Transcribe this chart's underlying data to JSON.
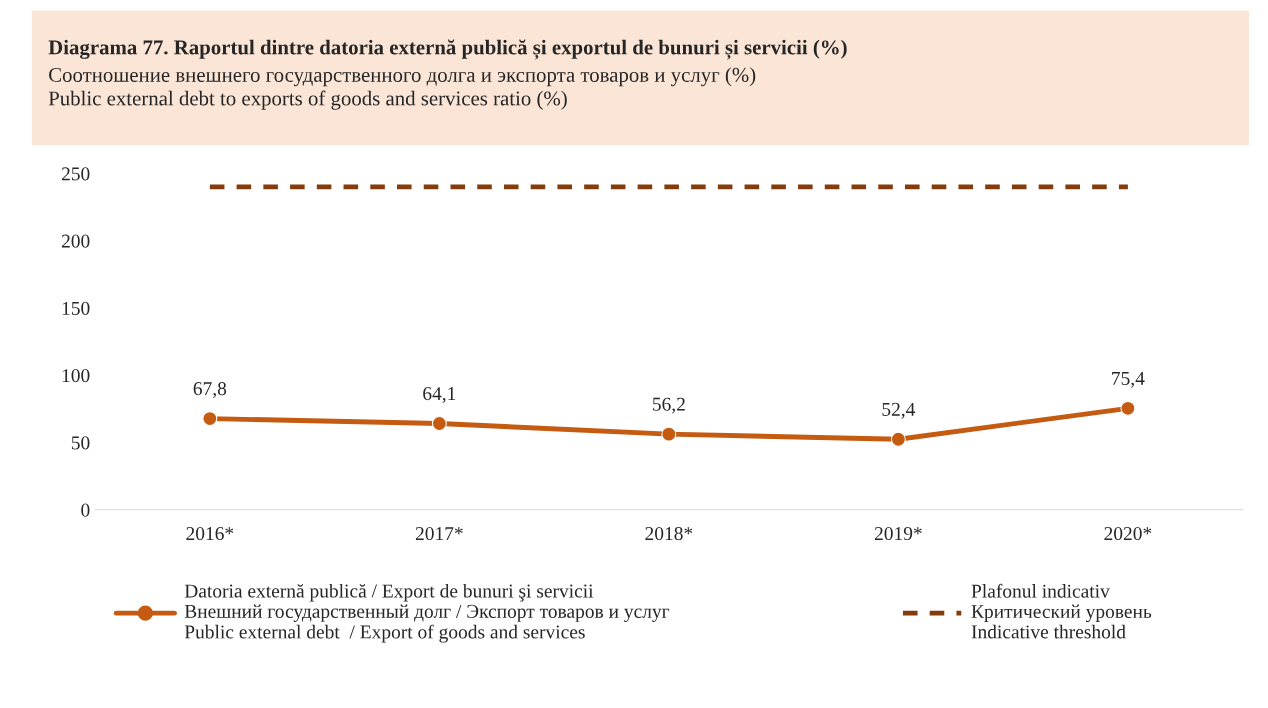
{
  "chart_data": {
    "type": "line",
    "title": "Diagrama 77. Raportul dintre datoria externă publică și exportul de bunuri și servicii (%)",
    "subtitle": "Соотношение внешнего государственного долга и экспорта товаров и услуг (%)\nPublic external debt to exports of goods and services ratio (%)",
    "categories": [
      "2016*",
      "2017*",
      "2018*",
      "2019*",
      "2020*"
    ],
    "series": [
      {
        "name": "Datoria externă publică / Export de bunuri şi servicii\nВнешний государственный долг / Экспорт товаров и услуг\nPublic external debt  / Export of goods and services",
        "color": "#c55a11",
        "values": [
          67.8,
          64.1,
          56.2,
          52.4,
          75.4
        ],
        "value_labels": [
          "67,8",
          "64,1",
          "56,2",
          "52,4",
          "75,4"
        ],
        "marker": "circle",
        "line_style": "solid"
      },
      {
        "name": "Plafonul indicativ\nКритический уровень\nIndicative threshold",
        "color": "#843c0c",
        "values": [
          240,
          240,
          240,
          240,
          240
        ],
        "marker": "none",
        "line_style": "dashed"
      }
    ],
    "ylim": [
      0,
      250
    ],
    "yticks": [
      0,
      50,
      100,
      150,
      200,
      250
    ],
    "grid": false,
    "legend": "bottom"
  }
}
